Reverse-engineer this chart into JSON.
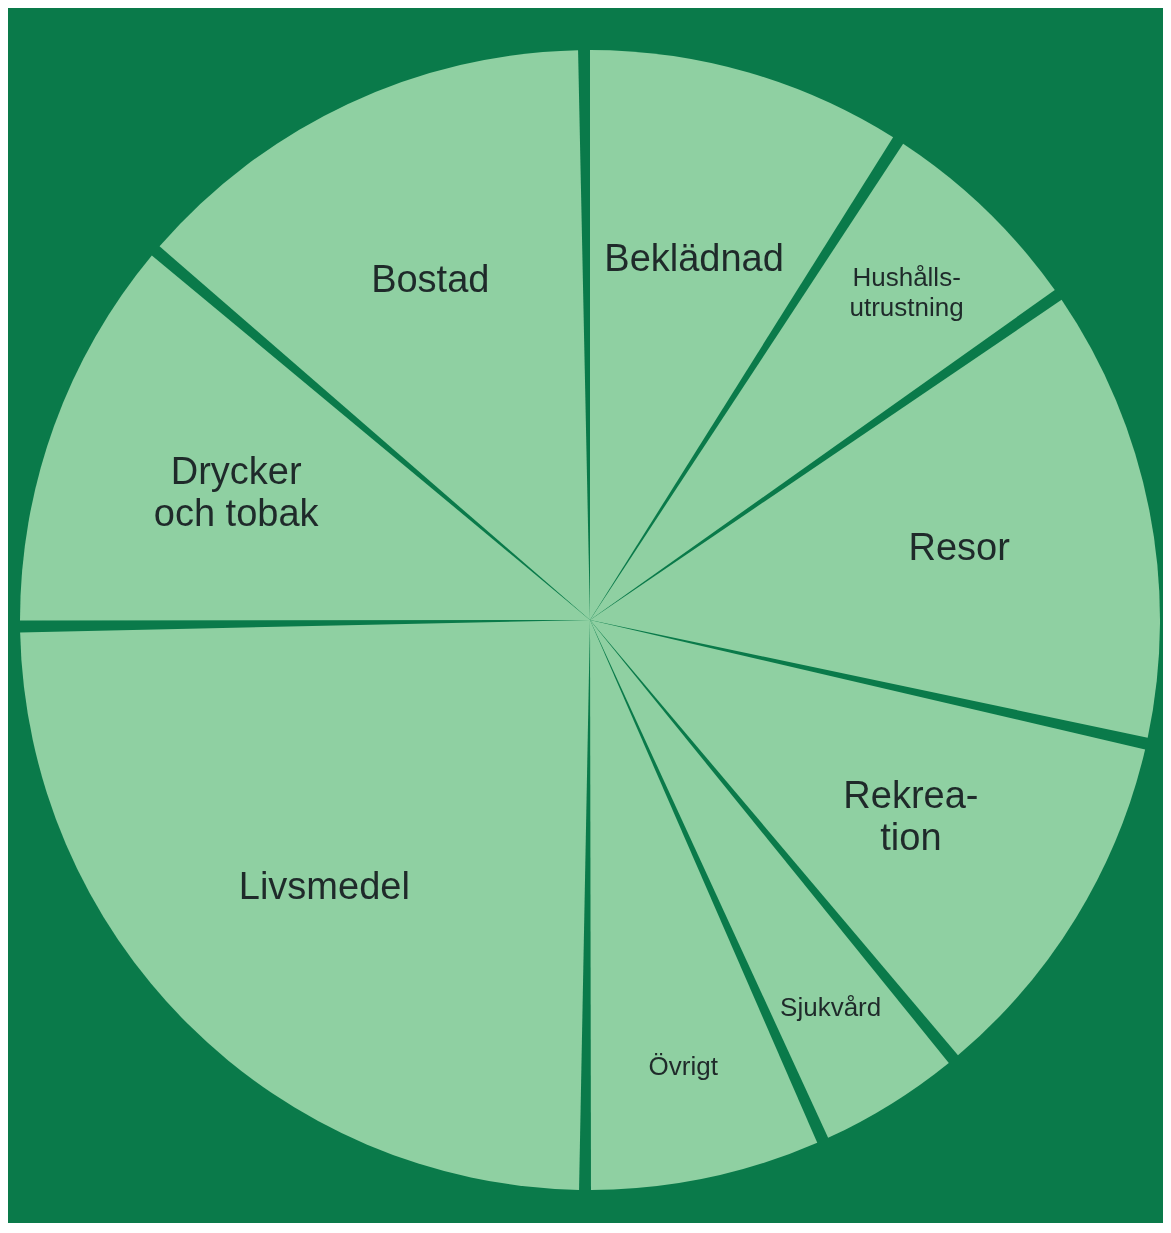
{
  "chart_data": {
    "type": "pie",
    "categories": [
      "Beklädnad",
      "Hushålls-\nutrustning",
      "Resor",
      "Rekrea-\ntion",
      "Sjukvård",
      "Övrigt",
      "Livsmedel",
      "Drycker\noch tobak",
      "Bostad"
    ],
    "values": [
      9.2,
      6.1,
      13.2,
      10.5,
      4.1,
      6.7,
      25.1,
      11.4,
      13.7
    ],
    "colors": [
      "#8fd0a2",
      "#8fd0a2",
      "#8fd0a2",
      "#8fd0a2",
      "#8fd0a2",
      "#8fd0a2",
      "#8fd0a2",
      "#8fd0a2",
      "#8fd0a2"
    ],
    "legend": false
  }
}
